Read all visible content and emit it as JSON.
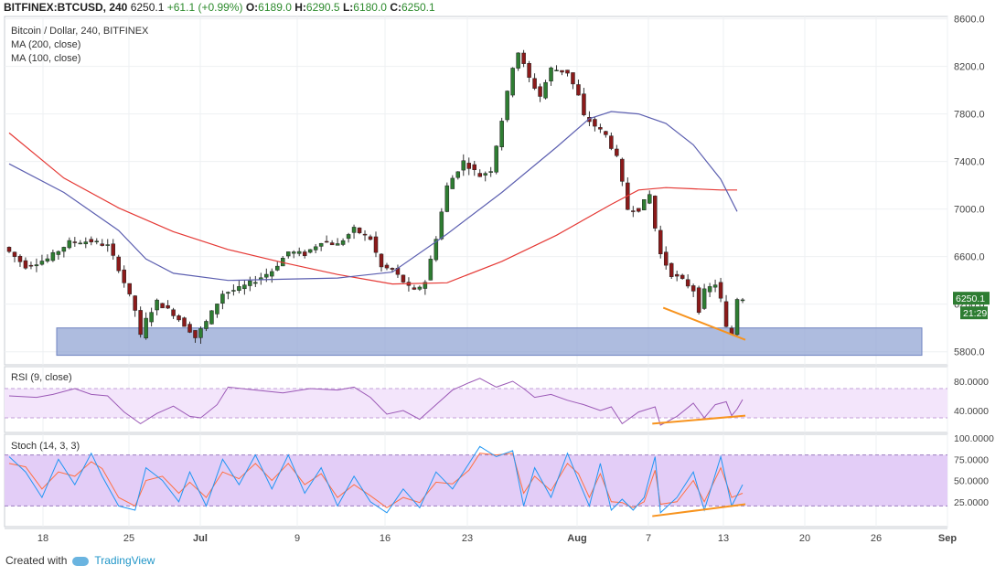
{
  "header": {
    "symbol": "BITFINEX:BTCUSD, 240",
    "last": "6250.1",
    "change": "+61.1 (+0.99%)",
    "o_label": "O:",
    "o_val": "6189.0",
    "h_label": "H:",
    "h_val": "6290.5",
    "l_label": "L:",
    "l_val": "6180.0",
    "c_label": "C:",
    "c_val": "6250.1"
  },
  "legend": {
    "title": "Bitcoin / Dollar, 240, BITFINEX",
    "ma200": "MA (200, close)",
    "ma100": "MA (100, close)",
    "rsi": "RSI (9, close)",
    "stoch": "Stoch (14, 3, 3)"
  },
  "footer": {
    "created_with": "Created with",
    "brand": "TradingView",
    "brand_icon": "tradingview-cloud-icon"
  },
  "colors": {
    "up": "#2e7d32",
    "down": "#8b1a1a",
    "ma200": "#e53935",
    "ma100": "#5c5fb0",
    "support_zone": "#8c9fd2",
    "trendline": "#f7931e",
    "rsi": "#9b59b6",
    "stoch_k": "#2196f3",
    "stoch_d": "#ff7043"
  },
  "chart_data": [
    {
      "type": "candlestick",
      "title": "Bitcoin / Dollar, 240, BITFINEX",
      "x_ticks": [
        "18",
        "25",
        "Jul",
        "9",
        "16",
        "23",
        "Aug",
        "7",
        "13",
        "20",
        "26",
        "Sep"
      ],
      "y_ticks": [
        "8600.0",
        "8200.0",
        "7800.0",
        "7400.0",
        "7000.0",
        "6600.0",
        "6200.0",
        "5800.0"
      ],
      "ylim": [
        5690,
        8620
      ],
      "last_price_label": "6250.1",
      "countdown_label": "21:29",
      "price_path": [
        [
          0,
          6680
        ],
        [
          4,
          6520
        ],
        [
          8,
          6580
        ],
        [
          12,
          6720
        ],
        [
          16,
          6730
        ],
        [
          19,
          6690
        ],
        [
          21,
          6500
        ],
        [
          24,
          6150
        ],
        [
          25,
          5930
        ],
        [
          26,
          6070
        ],
        [
          28,
          6220
        ],
        [
          31,
          6120
        ],
        [
          34,
          5980
        ],
        [
          35,
          5920
        ],
        [
          37,
          6050
        ],
        [
          40,
          6290
        ],
        [
          43,
          6330
        ],
        [
          46,
          6400
        ],
        [
          49,
          6480
        ],
        [
          52,
          6640
        ],
        [
          55,
          6620
        ],
        [
          58,
          6730
        ],
        [
          61,
          6700
        ],
        [
          64,
          6830
        ],
        [
          67,
          6750
        ],
        [
          69,
          6510
        ],
        [
          71,
          6490
        ],
        [
          74,
          6340
        ],
        [
          75,
          6310
        ],
        [
          77,
          6390
        ],
        [
          79,
          6760
        ],
        [
          81,
          7190
        ],
        [
          84,
          7400
        ],
        [
          87,
          7280
        ],
        [
          89,
          7330
        ],
        [
          91,
          7750
        ],
        [
          93,
          8200
        ],
        [
          94,
          8320
        ],
        [
          96,
          8100
        ],
        [
          98,
          7950
        ],
        [
          100,
          8180
        ],
        [
          103,
          8150
        ],
        [
          105,
          7950
        ],
        [
          106,
          7780
        ],
        [
          108,
          7700
        ],
        [
          110,
          7620
        ],
        [
          112,
          7430
        ],
        [
          114,
          7000
        ],
        [
          116,
          7000
        ],
        [
          118,
          7120
        ],
        [
          119,
          6840
        ],
        [
          120,
          6620
        ],
        [
          122,
          6450
        ],
        [
          124,
          6400
        ],
        [
          126,
          6320
        ],
        [
          127,
          6150
        ],
        [
          128,
          6310
        ],
        [
          130,
          6370
        ],
        [
          131,
          6240
        ],
        [
          132,
          6000
        ],
        [
          133,
          5950
        ],
        [
          134,
          6250
        ]
      ],
      "series": [
        {
          "name": "MA (200, close)",
          "points": [
            [
              0,
              7640
            ],
            [
              10,
              7260
            ],
            [
              20,
              7010
            ],
            [
              30,
              6810
            ],
            [
              40,
              6660
            ],
            [
              50,
              6550
            ],
            [
              60,
              6450
            ],
            [
              70,
              6370
            ],
            [
              80,
              6380
            ],
            [
              90,
              6560
            ],
            [
              100,
              6780
            ],
            [
              110,
              7040
            ],
            [
              115,
              7160
            ],
            [
              120,
              7180
            ],
            [
              125,
              7170
            ],
            [
              130,
              7160
            ],
            [
              133,
              7160
            ]
          ]
        },
        {
          "name": "MA (100, close)",
          "points": [
            [
              0,
              7380
            ],
            [
              10,
              7140
            ],
            [
              20,
              6820
            ],
            [
              25,
              6580
            ],
            [
              30,
              6460
            ],
            [
              40,
              6400
            ],
            [
              50,
              6410
            ],
            [
              60,
              6420
            ],
            [
              70,
              6470
            ],
            [
              80,
              6790
            ],
            [
              90,
              7140
            ],
            [
              100,
              7520
            ],
            [
              106,
              7760
            ],
            [
              110,
              7820
            ],
            [
              115,
              7800
            ],
            [
              120,
              7720
            ],
            [
              125,
              7540
            ],
            [
              130,
              7250
            ],
            [
              133,
              6980
            ]
          ]
        }
      ],
      "annotations": {
        "support_zone": [
          5770,
          6000
        ],
        "trendline": [
          [
            119.5,
            6170
          ],
          [
            134.5,
            5900
          ]
        ]
      }
    },
    {
      "type": "line",
      "title": "RSI (9, close)",
      "y_ticks": [
        "80.0000",
        "40.0000"
      ],
      "ylim": [
        10,
        100
      ],
      "band": [
        30,
        70
      ],
      "series": [
        {
          "name": "RSI (9, close)",
          "points": [
            [
              0,
              60
            ],
            [
              5,
              58
            ],
            [
              8,
              62
            ],
            [
              12,
              70
            ],
            [
              15,
              62
            ],
            [
              18,
              60
            ],
            [
              21,
              38
            ],
            [
              24,
              22
            ],
            [
              27,
              36
            ],
            [
              30,
              46
            ],
            [
              33,
              32
            ],
            [
              35,
              30
            ],
            [
              38,
              48
            ],
            [
              40,
              72
            ],
            [
              45,
              68
            ],
            [
              50,
              64
            ],
            [
              55,
              70
            ],
            [
              60,
              68
            ],
            [
              63,
              72
            ],
            [
              66,
              58
            ],
            [
              69,
              35
            ],
            [
              72,
              40
            ],
            [
              75,
              28
            ],
            [
              78,
              48
            ],
            [
              81,
              68
            ],
            [
              84,
              78
            ],
            [
              86,
              84
            ],
            [
              89,
              72
            ],
            [
              92,
              80
            ],
            [
              94,
              70
            ],
            [
              96,
              58
            ],
            [
              99,
              62
            ],
            [
              102,
              54
            ],
            [
              105,
              48
            ],
            [
              108,
              40
            ],
            [
              110,
              45
            ],
            [
              112,
              22
            ],
            [
              115,
              38
            ],
            [
              118,
              45
            ],
            [
              119,
              20
            ],
            [
              122,
              32
            ],
            [
              125,
              50
            ],
            [
              127,
              30
            ],
            [
              129,
              48
            ],
            [
              131,
              52
            ],
            [
              132,
              33
            ],
            [
              133,
              42
            ],
            [
              134,
              55
            ]
          ]
        }
      ],
      "annotations": {
        "trendline": [
          [
            117.5,
            22
          ],
          [
            134.5,
            33
          ]
        ]
      }
    },
    {
      "type": "line",
      "title": "Stoch (14, 3, 3)",
      "y_ticks": [
        "100.0000",
        "75.0000",
        "50.0000",
        "25.0000"
      ],
      "ylim": [
        0,
        100
      ],
      "band": [
        20,
        80
      ],
      "series": [
        {
          "name": "%K",
          "points": [
            [
              0,
              78
            ],
            [
              3,
              60
            ],
            [
              6,
              30
            ],
            [
              9,
              75
            ],
            [
              12,
              45
            ],
            [
              15,
              82
            ],
            [
              17,
              55
            ],
            [
              20,
              20
            ],
            [
              23,
              15
            ],
            [
              25,
              65
            ],
            [
              28,
              50
            ],
            [
              31,
              25
            ],
            [
              33,
              60
            ],
            [
              36,
              20
            ],
            [
              39,
              75
            ],
            [
              42,
              45
            ],
            [
              45,
              80
            ],
            [
              48,
              40
            ],
            [
              51,
              80
            ],
            [
              54,
              35
            ],
            [
              57,
              65
            ],
            [
              60,
              20
            ],
            [
              63,
              55
            ],
            [
              66,
              25
            ],
            [
              69,
              12
            ],
            [
              72,
              40
            ],
            [
              75,
              18
            ],
            [
              78,
              60
            ],
            [
              81,
              40
            ],
            [
              84,
              70
            ],
            [
              86,
              90
            ],
            [
              89,
              78
            ],
            [
              92,
              85
            ],
            [
              94,
              20
            ],
            [
              96,
              65
            ],
            [
              99,
              30
            ],
            [
              102,
              82
            ],
            [
              104,
              50
            ],
            [
              106,
              20
            ],
            [
              108,
              70
            ],
            [
              110,
              15
            ],
            [
              112,
              28
            ],
            [
              114,
              15
            ],
            [
              116,
              30
            ],
            [
              118,
              78
            ],
            [
              119,
              12
            ],
            [
              122,
              30
            ],
            [
              125,
              60
            ],
            [
              127,
              15
            ],
            [
              130,
              78
            ],
            [
              132,
              20
            ],
            [
              134,
              45
            ]
          ]
        },
        {
          "name": "%D",
          "points": [
            [
              0,
              70
            ],
            [
              3,
              66
            ],
            [
              6,
              40
            ],
            [
              9,
              60
            ],
            [
              12,
              55
            ],
            [
              15,
              72
            ],
            [
              17,
              64
            ],
            [
              20,
              30
            ],
            [
              23,
              20
            ],
            [
              25,
              50
            ],
            [
              28,
              55
            ],
            [
              31,
              35
            ],
            [
              33,
              48
            ],
            [
              36,
              30
            ],
            [
              39,
              60
            ],
            [
              42,
              52
            ],
            [
              45,
              70
            ],
            [
              48,
              50
            ],
            [
              51,
              70
            ],
            [
              54,
              45
            ],
            [
              57,
              58
            ],
            [
              60,
              30
            ],
            [
              63,
              45
            ],
            [
              66,
              32
            ],
            [
              69,
              18
            ],
            [
              72,
              30
            ],
            [
              75,
              24
            ],
            [
              78,
              48
            ],
            [
              81,
              46
            ],
            [
              84,
              62
            ],
            [
              86,
              82
            ],
            [
              89,
              80
            ],
            [
              92,
              82
            ],
            [
              94,
              35
            ],
            [
              96,
              55
            ],
            [
              99,
              38
            ],
            [
              102,
              70
            ],
            [
              104,
              58
            ],
            [
              106,
              30
            ],
            [
              108,
              58
            ],
            [
              110,
              25
            ],
            [
              112,
              24
            ],
            [
              114,
              18
            ],
            [
              116,
              25
            ],
            [
              118,
              62
            ],
            [
              119,
              22
            ],
            [
              122,
              25
            ],
            [
              125,
              50
            ],
            [
              127,
              25
            ],
            [
              130,
              65
            ],
            [
              132,
              30
            ],
            [
              134,
              35
            ]
          ]
        }
      ],
      "annotations": {
        "trendline": [
          [
            117.5,
            8
          ],
          [
            134.5,
            22
          ]
        ]
      }
    }
  ]
}
